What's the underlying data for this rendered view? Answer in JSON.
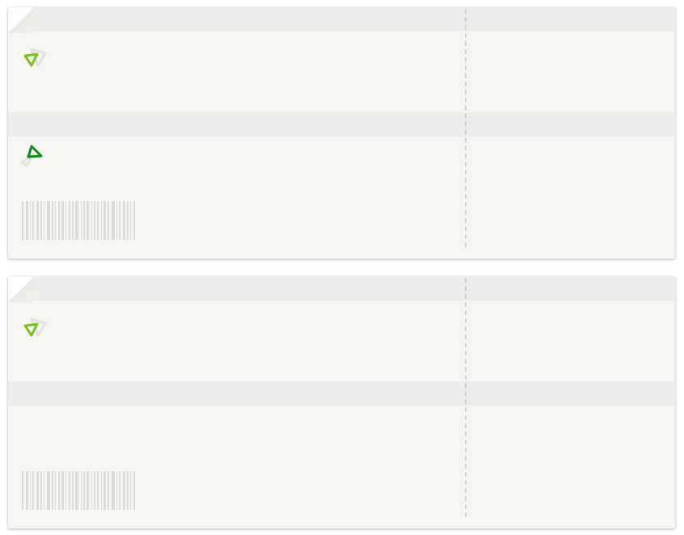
{
  "tickets": [
    {
      "id": "ticket-1",
      "icons": [
        "departure-arrow-icon",
        "return-arrow-icon"
      ],
      "barcode": true
    },
    {
      "id": "ticket-2",
      "icons": [
        "departure-arrow-icon"
      ],
      "barcode": true
    }
  ],
  "colors": {
    "ticket_bg": "#f7f6f3",
    "band": "#eeedeb",
    "arrow_light_green": "#7cbf26",
    "arrow_dark_green": "#0e8a1e",
    "barcode": "#dedcd8"
  }
}
